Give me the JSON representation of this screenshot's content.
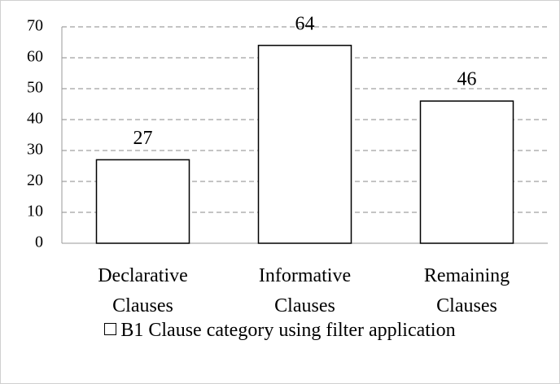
{
  "chart_data": {
    "type": "bar",
    "categories": [
      "Declarative Clauses",
      "Informative Clauses",
      "Remaining Clauses"
    ],
    "series": [
      {
        "name": "B1 Clause category using filter application",
        "color": "#ffffff",
        "values": [
          27,
          64,
          46
        ]
      }
    ],
    "ylim": [
      0,
      70
    ],
    "yticks": [
      0,
      10,
      20,
      30,
      40,
      50,
      60,
      70
    ],
    "grid": true,
    "legend": "bottom"
  }
}
